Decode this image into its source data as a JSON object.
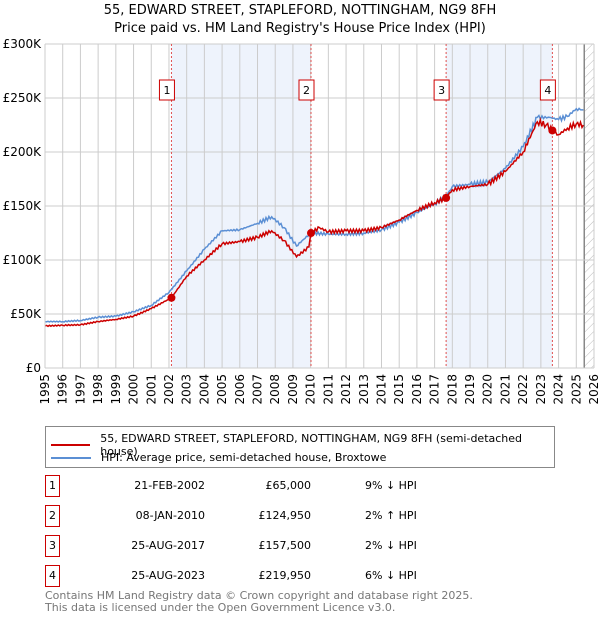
{
  "chart_data": {
    "type": "line",
    "title": "55, EDWARD STREET, STAPLEFORD, NOTTINGHAM, NG9 8FH",
    "subtitle": "Price paid vs. HM Land Registry's House Price Index (HPI)",
    "xlim": [
      1995,
      2026
    ],
    "ylim": [
      0,
      300000
    ],
    "x_ticks": [
      "1995",
      "1996",
      "1997",
      "1998",
      "1999",
      "2000",
      "2001",
      "2002",
      "2003",
      "2004",
      "2005",
      "2006",
      "2007",
      "2008",
      "2009",
      "2010",
      "2011",
      "2012",
      "2013",
      "2014",
      "2015",
      "2016",
      "2017",
      "2018",
      "2019",
      "2020",
      "2021",
      "2022",
      "2023",
      "2024",
      "2025",
      "2026"
    ],
    "y_ticks": [
      {
        "v": 0,
        "label": "£0"
      },
      {
        "v": 50000,
        "label": "£50K"
      },
      {
        "v": 100000,
        "label": "£100K"
      },
      {
        "v": 150000,
        "label": "£150K"
      },
      {
        "v": 200000,
        "label": "£200K"
      },
      {
        "v": 250000,
        "label": "£250K"
      },
      {
        "v": 300000,
        "label": "£300K"
      }
    ],
    "grid": true,
    "series": [
      {
        "name": "55, EDWARD STREET, STAPLEFORD, NOTTINGHAM, NG9 8FH (semi-detached house)",
        "color": "#cc0000",
        "x": [
          1995,
          1996,
          1997,
          1998,
          1999,
          2000,
          2001,
          2002.14,
          2003,
          2004,
          2005,
          2006,
          2007,
          2007.8,
          2008.5,
          2009.2,
          2009.9,
          2010.02,
          2010.5,
          2011,
          2012,
          2013,
          2014,
          2015,
          2016,
          2017,
          2017.65,
          2018,
          2019,
          2020,
          2021,
          2022,
          2022.8,
          2023.3,
          2023.65,
          2024,
          2024.5,
          2025,
          2025.4
        ],
        "y": [
          39000,
          39500,
          40000,
          43000,
          45000,
          48000,
          55000,
          65000,
          85000,
          100000,
          115000,
          117000,
          121000,
          127000,
          118000,
          103000,
          112000,
          125000,
          130000,
          126000,
          127000,
          127000,
          130000,
          137000,
          146000,
          153000,
          157500,
          165000,
          168000,
          170000,
          182000,
          200000,
          228000,
          225000,
          220000,
          216000,
          222000,
          226000,
          225000
        ]
      },
      {
        "name": "HPI: Average price, semi-detached house, Broxtowe",
        "color": "#5b8fd4",
        "x": [
          1995,
          1996,
          1997,
          1998,
          1999,
          2000,
          2001,
          2002,
          2003,
          2004,
          2005,
          2006,
          2007,
          2007.8,
          2008.5,
          2009.2,
          2010,
          2011,
          2012,
          2013,
          2014,
          2015,
          2016,
          2017,
          2017.7,
          2018,
          2019,
          2020,
          2021,
          2022,
          2022.8,
          2023.5,
          2024,
          2024.5,
          2025,
          2025.4
        ],
        "y": [
          43000,
          43000,
          44000,
          47000,
          48000,
          52000,
          58000,
          70000,
          90000,
          110000,
          127000,
          128000,
          134000,
          140000,
          130000,
          113000,
          125000,
          124000,
          124000,
          125000,
          128000,
          135000,
          144000,
          152000,
          160000,
          168000,
          170000,
          172000,
          185000,
          205000,
          232000,
          232000,
          230000,
          233000,
          240000,
          239000
        ]
      }
    ],
    "sales": [
      {
        "label": "1",
        "x": 2002.14,
        "y": 65000
      },
      {
        "label": "2",
        "x": 2010.02,
        "y": 124950
      },
      {
        "label": "3",
        "x": 2017.65,
        "y": 157500
      },
      {
        "label": "4",
        "x": 2023.65,
        "y": 219950
      }
    ],
    "shaded": [
      [
        2002.14,
        2010.02
      ],
      [
        2017.65,
        2023.65
      ]
    ],
    "hatched_from": 2025.45
  },
  "legend": {
    "property": "55, EDWARD STREET, STAPLEFORD, NOTTINGHAM, NG9 8FH (semi-detached house)",
    "hpi": "HPI: Average price, semi-detached house, Broxtowe"
  },
  "transactions": [
    {
      "num": "1",
      "date": "21-FEB-2002",
      "price": "£65,000",
      "hpi": "9% ↓ HPI"
    },
    {
      "num": "2",
      "date": "08-JAN-2010",
      "price": "£124,950",
      "hpi": "2% ↑ HPI"
    },
    {
      "num": "3",
      "date": "25-AUG-2017",
      "price": "£157,500",
      "hpi": "2% ↓ HPI"
    },
    {
      "num": "4",
      "date": "25-AUG-2023",
      "price": "£219,950",
      "hpi": "6% ↓ HPI"
    }
  ],
  "footer": {
    "line1": "Contains HM Land Registry data © Crown copyright and database right 2025.",
    "line2": "This data is licensed under the Open Government Licence v3.0."
  }
}
